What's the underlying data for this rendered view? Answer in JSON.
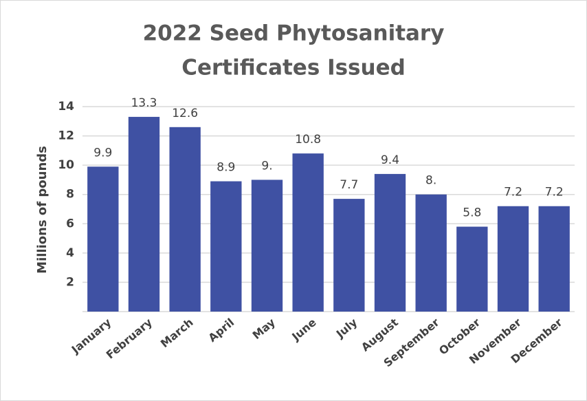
{
  "chart_data": {
    "type": "bar",
    "title": [
      "2022 Seed Phytosanitary",
      "Certificates Issued"
    ],
    "y_label": "Millions of pounds",
    "categories": [
      "January",
      "February",
      "March",
      "April",
      "May",
      "June",
      "July",
      "August",
      "September",
      "October",
      "November",
      "December"
    ],
    "values": [
      9.9,
      13.3,
      12.6,
      8.9,
      9,
      10.8,
      7.7,
      9.4,
      8,
      5.8,
      7.2,
      7.2
    ],
    "value_labels": [
      "9.9",
      "13.3",
      "12.6",
      "8.9",
      "9.",
      "10.8",
      "7.7",
      "9.4",
      "8.",
      "5.8",
      "7.2",
      "7.2"
    ],
    "color": "#3f51a3",
    "ylim": [
      0,
      14
    ],
    "yticks": [
      2,
      4,
      6,
      8,
      10,
      12,
      14
    ],
    "grid": true
  }
}
